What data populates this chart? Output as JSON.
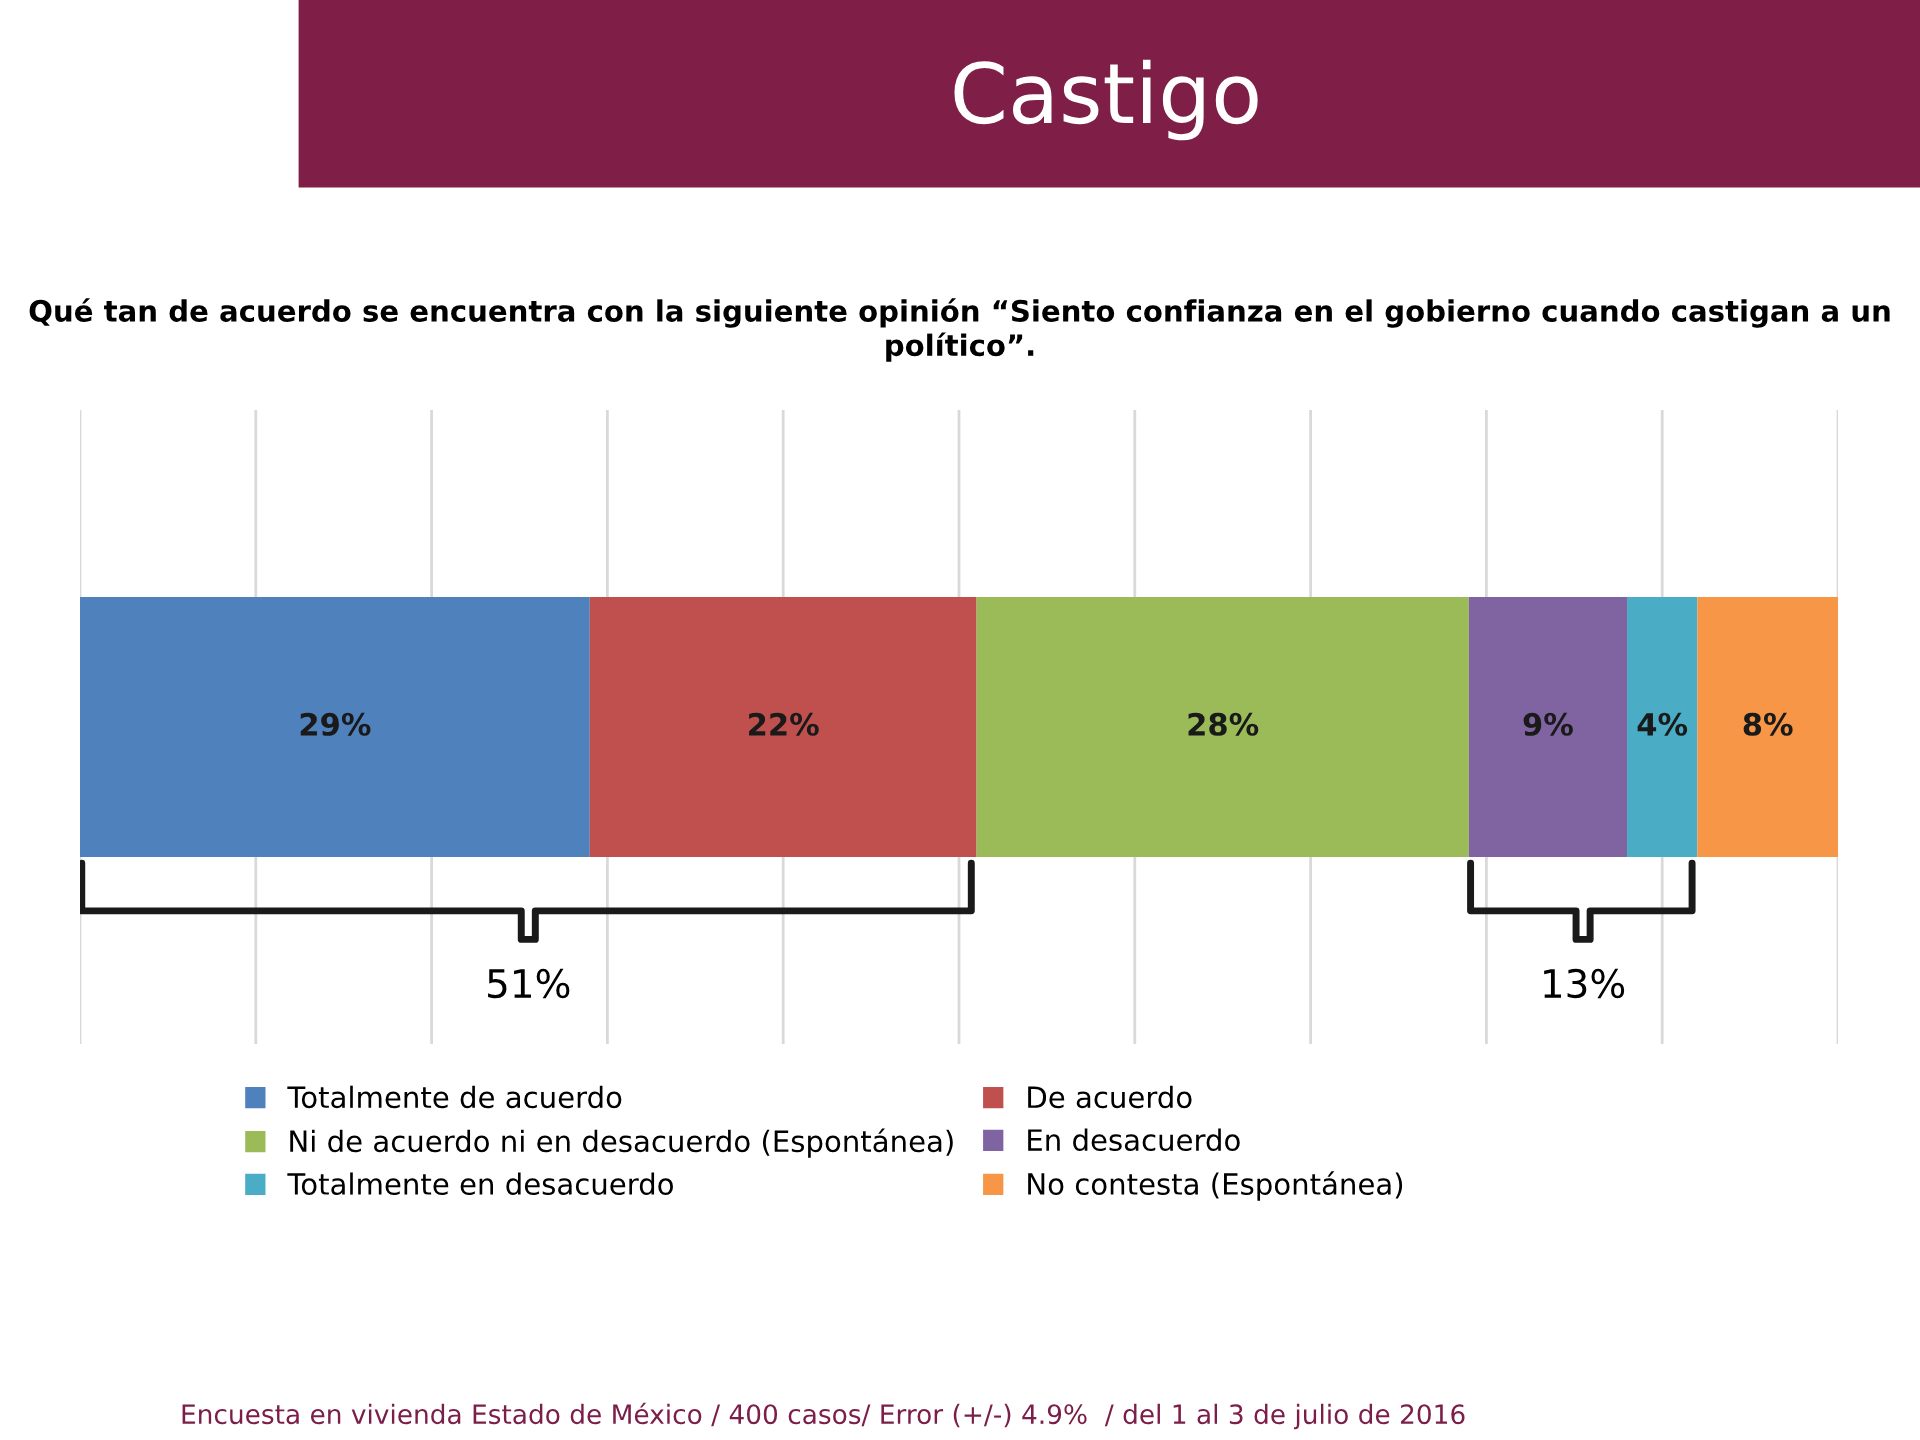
{
  "chart_data": {
    "type": "bar",
    "orientation": "horizontal",
    "stacked": true,
    "title": "Castigo",
    "subtitle": "Qué tan de acuerdo se encuentra con la siguiente opinión “Siento confianza en el gobierno cuando castigan a un político”.",
    "categories": [
      null
    ],
    "series": [
      {
        "name": "Totalmente de acuerdo",
        "color": "#4f81bd",
        "values": [
          29
        ],
        "value_labels": [
          "29%"
        ]
      },
      {
        "name": "De acuerdo",
        "color": "#c0504d",
        "values": [
          22
        ],
        "value_labels": [
          "22%"
        ]
      },
      {
        "name": "Ni de acuerdo ni en desacuerdo (Espontánea)",
        "color": "#9bbb59",
        "values": [
          28
        ],
        "value_labels": [
          "28%"
        ]
      },
      {
        "name": "En desacuerdo",
        "color": "#8064a2",
        "values": [
          9
        ],
        "value_labels": [
          "9%"
        ]
      },
      {
        "name": "Totalmente en desacuerdo",
        "color": "#4bacc6",
        "values": [
          4
        ],
        "value_labels": [
          "4%"
        ]
      },
      {
        "name": "No contesta (Espontánea)",
        "color": "#f79646",
        "values": [
          8
        ],
        "value_labels": [
          "8%"
        ]
      }
    ],
    "xlim": [
      0,
      100
    ],
    "xticks": [
      {
        "value": 0,
        "label": null
      },
      {
        "value": 10,
        "label": null
      },
      {
        "value": 20,
        "label": null
      },
      {
        "value": 30,
        "label": null
      },
      {
        "value": 40,
        "label": null
      },
      {
        "value": 50,
        "label": null
      },
      {
        "value": 60,
        "label": null
      },
      {
        "value": 70,
        "label": null
      },
      {
        "value": 80,
        "label": null
      },
      {
        "value": 90,
        "label": null
      },
      {
        "value": 100,
        "label": null
      }
    ],
    "grid": "x",
    "legend": "bottom",
    "annotations": [
      "51%",
      "13%",
      "Encuesta en vivienda Estado de México / 400 casos/ Error (+/-) 4.9%  / del 1 al 3 de julio de 2016"
    ]
  }
}
